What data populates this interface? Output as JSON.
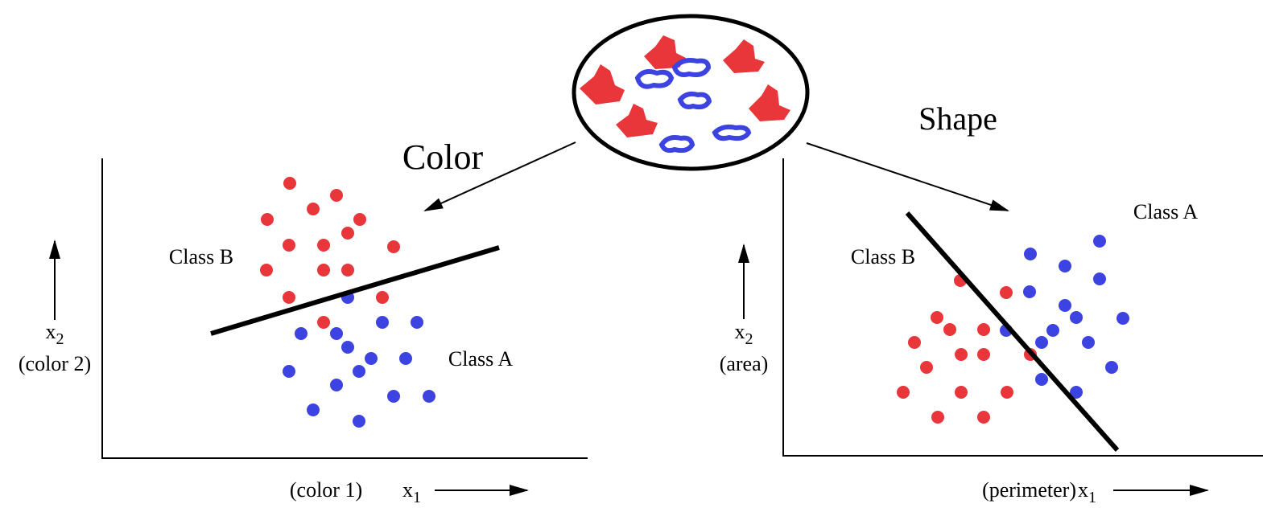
{
  "color_title": "Color",
  "shape_title": "Shape",
  "left_plot": {
    "class_b": "Class B",
    "class_a": "Class A",
    "y_axis": {
      "var": "x",
      "sub": "2",
      "desc": "(color 2)"
    },
    "x_axis": {
      "desc": "(color 1)",
      "var": "x",
      "sub": "1"
    }
  },
  "right_plot": {
    "class_b": "Class B",
    "class_a": "Class A",
    "y_axis": {
      "var": "x",
      "sub": "2",
      "desc": "(area)"
    },
    "x_axis": {
      "desc": "(perimeter)",
      "var": "x",
      "sub": "1"
    }
  }
}
